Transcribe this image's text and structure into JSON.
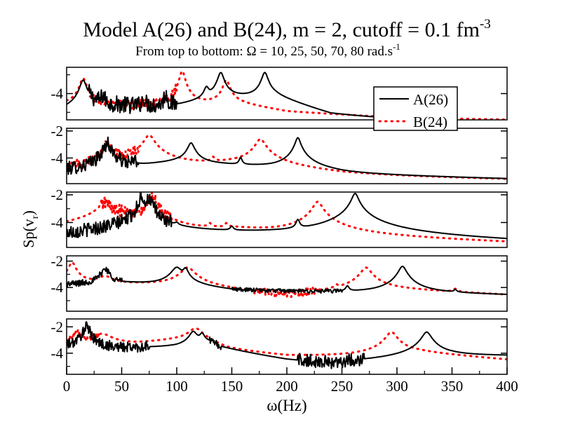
{
  "chart_data": {
    "type": "line",
    "title": "Model A(26) and B(24), m = 2, cutoff = 0.1 fm",
    "title_superscript": "-3",
    "subtitle": "From top to bottom: Ω = 10, 25, 50, 70, 80 rad.s",
    "subtitle_superscript": "-1",
    "xlabel": "ω(Hz)",
    "ylabel_main": "Sp(v",
    "ylabel_sub": "r",
    "ylabel_close": ")",
    "xlim": [
      0,
      400
    ],
    "x_ticks": [
      "0",
      "50",
      "100",
      "150",
      "200",
      "250",
      "300",
      "350",
      "400"
    ],
    "legend": {
      "placement": "top-right of first panel",
      "entries": [
        {
          "label": "A(26)",
          "color": "#000000",
          "style": "solid"
        },
        {
          "label": "B(24)",
          "color": "#ff0000",
          "style": "dotted"
        }
      ]
    },
    "panels": [
      {
        "omega": 10,
        "ylim": [
          -5.4,
          -2.6
        ],
        "y_ticks": [
          "-4"
        ],
        "series": [
          {
            "name": "A(26)",
            "base": [
              [
                0,
                -4.9
              ],
              [
                20,
                -4.6
              ],
              [
                60,
                -4.7
              ],
              [
                100,
                -4.7
              ],
              [
                150,
                -4.2
              ],
              [
                190,
                -4.2
              ],
              [
                240,
                -5.2
              ],
              [
                400,
                -5.8
              ]
            ],
            "peaks": [
              [
                15,
                -3.3,
                2.5
              ],
              [
                33,
                -4.3,
                1.5
              ],
              [
                70,
                -4.4,
                1.2
              ],
              [
                90,
                -4.1,
                1.2
              ],
              [
                127,
                -3.8,
                2
              ],
              [
                140,
                -2.9,
                2.5
              ],
              [
                180,
                -2.9,
                2.5
              ]
            ],
            "noise": [
              [
                20,
                100,
                0.45
              ]
            ]
          },
          {
            "name": "B(24)",
            "base": [
              [
                0,
                -4.6
              ],
              [
                30,
                -4.6
              ],
              [
                90,
                -4.7
              ],
              [
                150,
                -4.5
              ],
              [
                200,
                -5.0
              ],
              [
                300,
                -5.3
              ],
              [
                400,
                -5.4
              ]
            ],
            "peaks": [
              [
                15,
                -3.2,
                2.5
              ],
              [
                105,
                -2.8,
                2
              ],
              [
                145,
                -3.3,
                2.5
              ]
            ],
            "noise": [
              [
                20,
                100,
                0.25
              ]
            ]
          }
        ]
      },
      {
        "omega": 25,
        "ylim": [
          -5.9,
          -1.8
        ],
        "y_ticks": [
          "-2",
          "-4"
        ],
        "series": [
          {
            "name": "A(26)",
            "base": [
              [
                0,
                -5.0
              ],
              [
                30,
                -4.9
              ],
              [
                100,
                -4.3
              ],
              [
                180,
                -4.7
              ],
              [
                250,
                -5.3
              ],
              [
                400,
                -5.6
              ]
            ],
            "peaks": [
              [
                37,
                -2.9,
                2.5
              ],
              [
                62,
                -4.4,
                1.2
              ],
              [
                113,
                -2.9,
                2.5
              ],
              [
                158,
                -4.1,
                1.2
              ],
              [
                210,
                -2.5,
                2
              ]
            ],
            "noise": [
              [
                0,
                65,
                0.5
              ]
            ]
          },
          {
            "name": "B(24)",
            "base": [
              [
                0,
                -5.2
              ],
              [
                40,
                -4.9
              ],
              [
                150,
                -4.5
              ],
              [
                250,
                -5.6
              ],
              [
                400,
                -5.8
              ]
            ],
            "peaks": [
              [
                37,
                -2.8,
                2.5
              ],
              [
                75,
                -2.3,
                3.5
              ],
              [
                133,
                -4.2,
                1.5
              ],
              [
                176,
                -2.6,
                3.5
              ]
            ],
            "noise": [
              [
                0,
                65,
                0.35
              ]
            ]
          }
        ]
      },
      {
        "omega": 50,
        "ylim": [
          -5.8,
          -1.8
        ],
        "y_ticks": [
          "-2",
          "-4"
        ],
        "series": [
          {
            "name": "A(26)",
            "base": [
              [
                0,
                -5.0
              ],
              [
                50,
                -4.6
              ],
              [
                100,
                -4.7
              ],
              [
                200,
                -4.9
              ],
              [
                300,
                -5.3
              ],
              [
                400,
                -5.6
              ]
            ],
            "peaks": [
              [
                68,
                -2.0,
                1.5
              ],
              [
                75,
                -2.3,
                2
              ],
              [
                100,
                -4.5,
                1.5
              ],
              [
                150,
                -4.6,
                1.5
              ],
              [
                210,
                -3.9,
                1.5
              ],
              [
                262,
                -1.9,
                2.5
              ]
            ],
            "noise": [
              [
                0,
                95,
                0.5
              ]
            ]
          },
          {
            "name": "B(24)",
            "base": [
              [
                0,
                -4.2
              ],
              [
                60,
                -3.3
              ],
              [
                90,
                -5.0
              ],
              [
                150,
                -4.5
              ],
              [
                250,
                -5.2
              ],
              [
                400,
                -5.7
              ]
            ],
            "peaks": [
              [
                35,
                -2.6,
                5
              ],
              [
                78,
                -2.2,
                3
              ],
              [
                100,
                -5.6,
                2
              ],
              [
                130,
                -4.4,
                1.5
              ],
              [
                145,
                -4.4,
                1.2
              ],
              [
                228,
                -2.5,
                3.5
              ]
            ],
            "noise": [
              [
                30,
                95,
                0.45
              ]
            ]
          }
        ]
      },
      {
        "omega": 70,
        "ylim": [
          -5.8,
          -1.6
        ],
        "y_ticks": [
          "-2",
          "-4"
        ],
        "series": [
          {
            "name": "A(26)",
            "base": [
              [
                0,
                -3.8
              ],
              [
                60,
                -3.7
              ],
              [
                90,
                -3.8
              ],
              [
                150,
                -4.3
              ],
              [
                250,
                -4.4
              ],
              [
                350,
                -4.5
              ],
              [
                400,
                -4.6
              ]
            ],
            "peaks": [
              [
                35,
                -2.6,
                3
              ],
              [
                100,
                -2.5,
                4
              ],
              [
                108,
                -2.6,
                2
              ],
              [
                255,
                -4.1,
                1.5
              ],
              [
                305,
                -2.4,
                3
              ],
              [
                353,
                -4.6,
                1.2
              ]
            ],
            "noise": [
              [
                0,
                50,
                0.25
              ],
              [
                150,
                250,
                0.15
              ]
            ]
          },
          {
            "name": "B(24)",
            "base": [
              [
                0,
                -3.7
              ],
              [
                100,
                -3.8
              ],
              [
                180,
                -4.6
              ],
              [
                200,
                -5.1
              ],
              [
                220,
                -4.6
              ],
              [
                280,
                -4.1
              ],
              [
                400,
                -4.6
              ]
            ],
            "peaks": [
              [
                5,
                -2.1,
                2.5
              ],
              [
                35,
                -3.3,
                6
              ],
              [
                110,
                -2.5,
                5
              ],
              [
                245,
                -4.2,
                1.5
              ],
              [
                272,
                -2.5,
                4
              ],
              [
                353,
                -4.5,
                2
              ]
            ],
            "noise": [
              [
                170,
                230,
                0.25
              ]
            ]
          }
        ]
      },
      {
        "omega": 80,
        "ylim": [
          -5.6,
          -1.4
        ],
        "y_ticks": [
          "-2",
          "-4"
        ],
        "series": [
          {
            "name": "A(26)",
            "base": [
              [
                0,
                -3.6
              ],
              [
                30,
                -3.7
              ],
              [
                100,
                -3.5
              ],
              [
                130,
                -3.2
              ],
              [
                140,
                -3.6
              ],
              [
                200,
                -4.6
              ],
              [
                240,
                -5.0
              ],
              [
                270,
                -4.7
              ],
              [
                350,
                -4.2
              ],
              [
                400,
                -4.2
              ]
            ],
            "peaks": [
              [
                18,
                -2.0,
                2.5
              ],
              [
                115,
                -2.4,
                3
              ],
              [
                123,
                -2.6,
                2
              ],
              [
                327,
                -2.4,
                3.5
              ]
            ],
            "noise": [
              [
                0,
                75,
                0.4
              ],
              [
                130,
                140,
                0.3
              ],
              [
                210,
                270,
                0.5
              ]
            ]
          },
          {
            "name": "B(24)",
            "base": [
              [
                0,
                -3.4
              ],
              [
                60,
                -3.3
              ],
              [
                120,
                -2.8
              ],
              [
                145,
                -3.9
              ],
              [
                200,
                -4.4
              ],
              [
                260,
                -4.3
              ],
              [
                320,
                -4.0
              ],
              [
                400,
                -4.6
              ]
            ],
            "peaks": [
              [
                10,
                -2.4,
                3
              ],
              [
                32,
                -2.6,
                8
              ],
              [
                117,
                -2.2,
                5
              ],
              [
                295,
                -2.4,
                4
              ]
            ],
            "noise": [
              [
                0,
                30,
                0.2
              ]
            ]
          }
        ]
      }
    ]
  }
}
